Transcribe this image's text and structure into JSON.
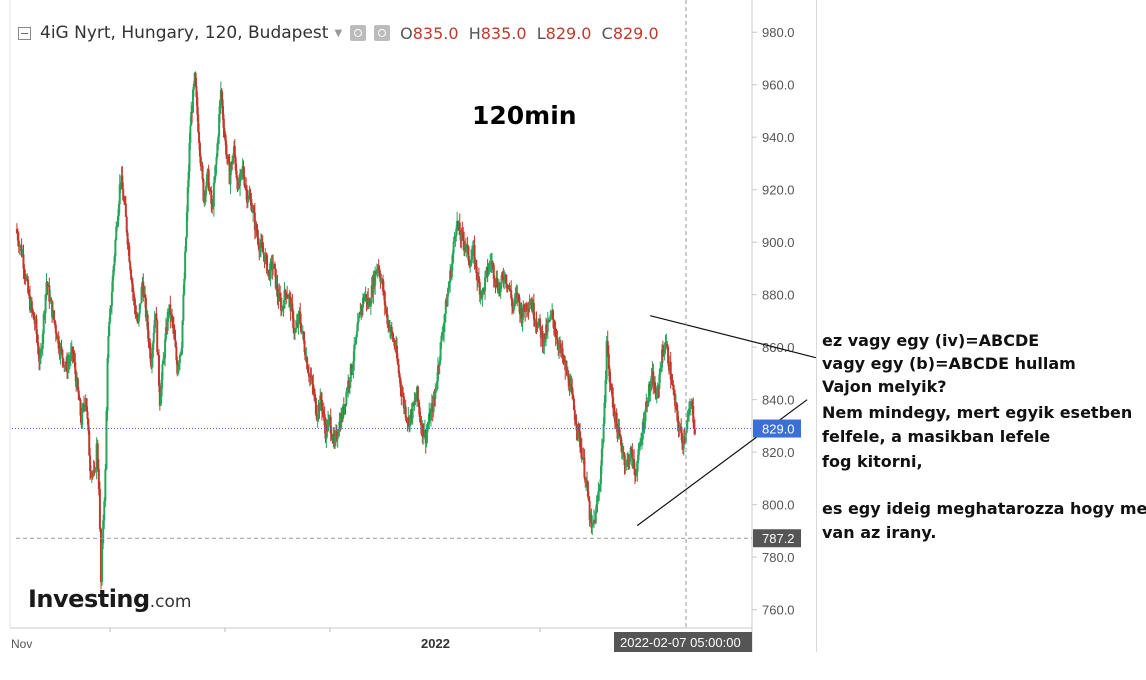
{
  "header": {
    "symbol": "4iG Nyrt, Hungary, 120, Budapest",
    "o_label": "O",
    "o_value": "835.0",
    "h_label": "H",
    "h_value": "835.0",
    "l_label": "L",
    "l_value": "829.0",
    "c_label": "C",
    "c_value": "829.0"
  },
  "chart_data": {
    "type": "candlestick",
    "title": "120min",
    "yaxis_ticks": [
      980,
      960,
      940,
      920,
      900,
      880,
      860,
      840,
      820,
      800,
      780,
      760
    ],
    "ylim": [
      753,
      990
    ],
    "xaxis_labels": [
      "Nov",
      "2022"
    ],
    "crosshair_label": "2022-02-07 05:00:00",
    "last_price_label": "829.0",
    "horizontal_level_label": "787.2",
    "close_path": [
      [
        0,
        905
      ],
      [
        6,
        895
      ],
      [
        12,
        878
      ],
      [
        18,
        868
      ],
      [
        22,
        853
      ],
      [
        28,
        885
      ],
      [
        34,
        872
      ],
      [
        40,
        860
      ],
      [
        46,
        852
      ],
      [
        52,
        858
      ],
      [
        56,
        845
      ],
      [
        60,
        832
      ],
      [
        64,
        842
      ],
      [
        68,
        815
      ],
      [
        72,
        810
      ],
      [
        74,
        822
      ],
      [
        76,
        808
      ],
      [
        78,
        770
      ],
      [
        80,
        795
      ],
      [
        82,
        812
      ],
      [
        84,
        858
      ],
      [
        88,
        882
      ],
      [
        92,
        905
      ],
      [
        96,
        925
      ],
      [
        100,
        912
      ],
      [
        104,
        895
      ],
      [
        108,
        878
      ],
      [
        112,
        868
      ],
      [
        116,
        885
      ],
      [
        120,
        870
      ],
      [
        124,
        855
      ],
      [
        128,
        875
      ],
      [
        132,
        840
      ],
      [
        136,
        858
      ],
      [
        140,
        875
      ],
      [
        144,
        868
      ],
      [
        148,
        852
      ],
      [
        152,
        862
      ],
      [
        156,
        902
      ],
      [
        160,
        945
      ],
      [
        164,
        962
      ],
      [
        168,
        940
      ],
      [
        172,
        918
      ],
      [
        176,
        925
      ],
      [
        180,
        912
      ],
      [
        184,
        932
      ],
      [
        188,
        958
      ],
      [
        192,
        938
      ],
      [
        196,
        925
      ],
      [
        200,
        935
      ],
      [
        204,
        920
      ],
      [
        208,
        928
      ],
      [
        212,
        918
      ],
      [
        216,
        915
      ],
      [
        220,
        905
      ],
      [
        224,
        898
      ],
      [
        228,
        895
      ],
      [
        232,
        888
      ],
      [
        236,
        892
      ],
      [
        240,
        880
      ],
      [
        244,
        875
      ],
      [
        248,
        882
      ],
      [
        252,
        876
      ],
      [
        256,
        865
      ],
      [
        260,
        872
      ],
      [
        264,
        862
      ],
      [
        268,
        852
      ],
      [
        272,
        845
      ],
      [
        276,
        835
      ],
      [
        280,
        840
      ],
      [
        284,
        828
      ],
      [
        288,
        832
      ],
      [
        292,
        822
      ],
      [
        296,
        830
      ],
      [
        300,
        835
      ],
      [
        304,
        845
      ],
      [
        308,
        852
      ],
      [
        312,
        862
      ],
      [
        316,
        874
      ],
      [
        320,
        880
      ],
      [
        324,
        876
      ],
      [
        328,
        885
      ],
      [
        332,
        892
      ],
      [
        336,
        884
      ],
      [
        340,
        872
      ],
      [
        344,
        866
      ],
      [
        348,
        860
      ],
      [
        352,
        848
      ],
      [
        356,
        838
      ],
      [
        360,
        832
      ],
      [
        364,
        836
      ],
      [
        368,
        842
      ],
      [
        372,
        830
      ],
      [
        376,
        826
      ],
      [
        380,
        834
      ],
      [
        384,
        840
      ],
      [
        388,
        855
      ],
      [
        392,
        868
      ],
      [
        396,
        880
      ],
      [
        400,
        892
      ],
      [
        404,
        908
      ],
      [
        408,
        902
      ],
      [
        412,
        900
      ],
      [
        416,
        893
      ],
      [
        420,
        896
      ],
      [
        424,
        885
      ],
      [
        428,
        880
      ],
      [
        432,
        888
      ],
      [
        436,
        893
      ],
      [
        440,
        886
      ],
      [
        444,
        882
      ],
      [
        448,
        888
      ],
      [
        452,
        884
      ],
      [
        456,
        875
      ],
      [
        460,
        880
      ],
      [
        464,
        872
      ],
      [
        468,
        876
      ],
      [
        472,
        878
      ],
      [
        476,
        872
      ],
      [
        480,
        868
      ],
      [
        484,
        862
      ],
      [
        488,
        868
      ],
      [
        492,
        872
      ],
      [
        496,
        864
      ],
      [
        500,
        858
      ],
      [
        504,
        852
      ],
      [
        508,
        846
      ],
      [
        512,
        836
      ],
      [
        516,
        828
      ],
      [
        520,
        818
      ],
      [
        524,
        806
      ],
      [
        528,
        790
      ],
      [
        532,
        796
      ],
      [
        536,
        810
      ],
      [
        540,
        836
      ],
      [
        542,
        865
      ],
      [
        544,
        850
      ],
      [
        548,
        838
      ],
      [
        552,
        828
      ],
      [
        556,
        822
      ],
      [
        560,
        815
      ],
      [
        564,
        820
      ],
      [
        568,
        812
      ],
      [
        572,
        820
      ],
      [
        576,
        832
      ],
      [
        580,
        842
      ],
      [
        584,
        848
      ],
      [
        588,
        840
      ],
      [
        592,
        855
      ],
      [
        596,
        862
      ],
      [
        600,
        852
      ],
      [
        604,
        840
      ],
      [
        608,
        830
      ],
      [
        612,
        824
      ],
      [
        616,
        832
      ],
      [
        620,
        838
      ],
      [
        623,
        829
      ]
    ],
    "annotation_lines": [
      {
        "from": [
          582,
          872
        ],
        "to": [
          734,
          856
        ]
      },
      {
        "from": [
          570,
          792
        ],
        "to": [
          726,
          840
        ]
      },
      {
        "from": [
          0,
          787.2
        ],
        "to": [
          744,
          787.2
        ]
      }
    ]
  },
  "logo": {
    "brand": "Investing",
    "suffix": ".com"
  },
  "annotation": {
    "line1": "ez vagy egy (iv)=ABCDE",
    "line2": "vagy egy (b)=ABCDE hullam",
    "line3": "Vajon melyik?",
    "line4": "Nem mindegy, mert egyik esetben",
    "line5": "felfele, a masikban lefele",
    "line6": "fog kitorni,",
    "line7": "es egy ideig meghatarozza hogy merre",
    "line8": "van az irany."
  },
  "colors": {
    "up": "#26a65b",
    "down": "#c0392b",
    "last_price_bg": "#3a6fd8",
    "level_bg": "#555555",
    "crosshair_bg": "#555555"
  }
}
